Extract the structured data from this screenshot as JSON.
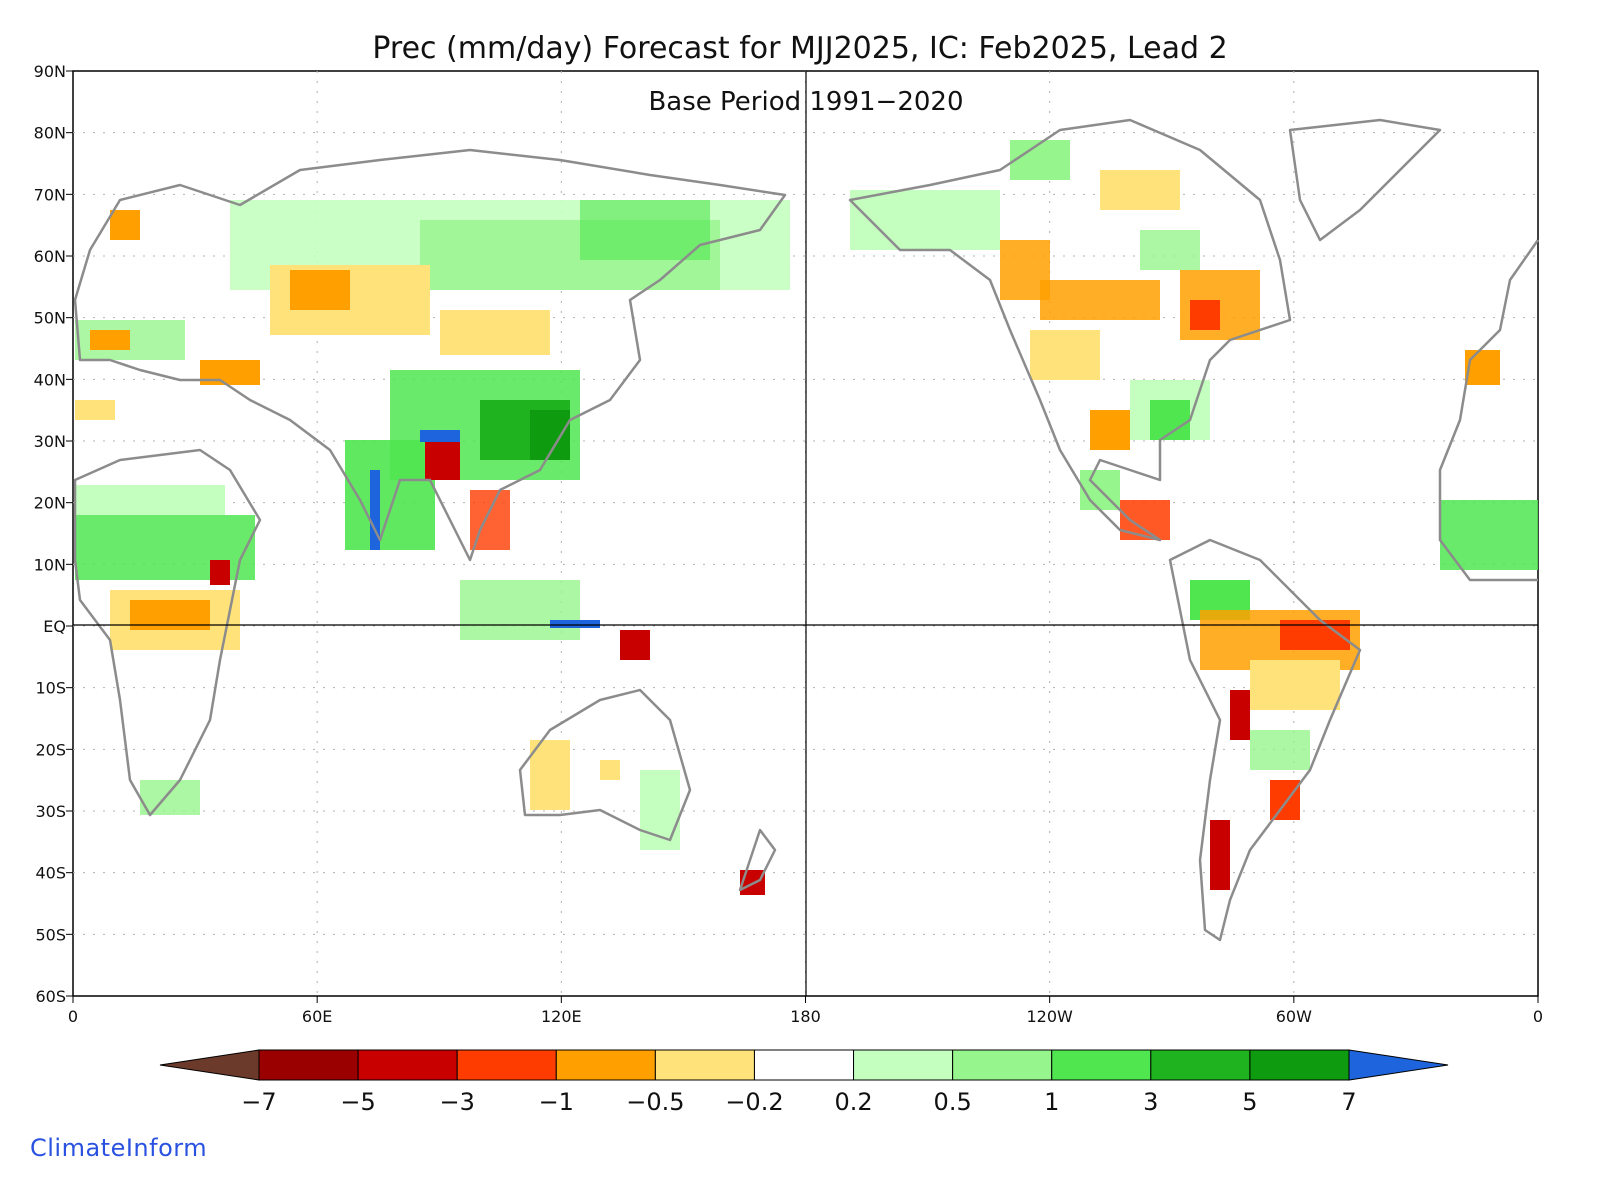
{
  "title": "Prec (mm/day) Forecast for MJJ2025, IC: Feb2025, Lead 2",
  "subtitle": "Base Period 1991−2020",
  "lat_labels": [
    "90N",
    "80N",
    "70N",
    "60N",
    "50N",
    "40N",
    "30N",
    "20N",
    "10N",
    "EQ",
    "10S",
    "20S",
    "30S",
    "40S",
    "50S",
    "60S"
  ],
  "lon_labels": [
    "0",
    "60E",
    "120E",
    "180",
    "120W",
    "60W",
    "0"
  ],
  "colorbar": {
    "labels": [
      "−7",
      "−5",
      "−3",
      "−1",
      "−0.5",
      "−0.2",
      "0.2",
      "0.5",
      "1",
      "3",
      "5",
      "7"
    ],
    "colors": [
      "#6b3a2a",
      "#9b0000",
      "#c80000",
      "#ff3c00",
      "#ffa000",
      "#ffe27a",
      "#ffffff",
      "#c4ffc0",
      "#96f58c",
      "#50e650",
      "#1fb41f",
      "#0f9b0f",
      "#1e64dc"
    ]
  },
  "credit": "ClimateInform",
  "colors": {
    "coast": "#8c8c8c",
    "frame": "#000000",
    "grid": "#b0b0b0"
  }
}
